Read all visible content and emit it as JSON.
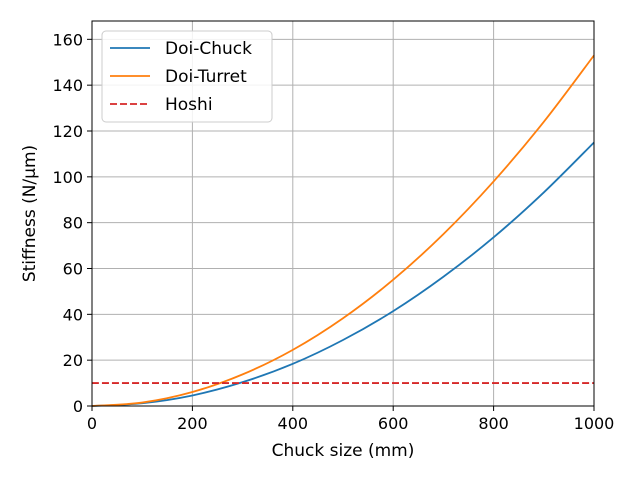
{
  "chart_data": {
    "type": "line",
    "title": "",
    "xlabel": "Chuck size (mm)",
    "ylabel": "Stiffness (N/µm)",
    "xlim": [
      0,
      1000
    ],
    "ylim": [
      0,
      168
    ],
    "xticks": [
      0,
      200,
      400,
      600,
      800,
      1000
    ],
    "xtick_labels": [
      "0",
      "200",
      "400",
      "600",
      "800",
      "1000"
    ],
    "yticks": [
      0,
      20,
      40,
      60,
      80,
      100,
      120,
      140,
      160
    ],
    "ytick_labels": [
      "0",
      "20",
      "40",
      "60",
      "80",
      "100",
      "120",
      "140",
      "160"
    ],
    "grid": true,
    "legend_position": "top-left",
    "x": [
      0,
      100,
      200,
      300,
      400,
      500,
      600,
      700,
      800,
      900,
      1000
    ],
    "series": [
      {
        "name": "Doi-Chuck",
        "color": "#1f77b4",
        "style": "solid",
        "values": [
          0,
          1.2,
          4.6,
          10.4,
          18.4,
          28.8,
          41.4,
          56.4,
          73.6,
          93.2,
          115
        ]
      },
      {
        "name": "Doi-Turret",
        "color": "#ff7f0e",
        "style": "solid",
        "values": [
          0,
          1.5,
          6.1,
          13.8,
          24.5,
          38.3,
          55.1,
          75.0,
          98.0,
          124.0,
          153
        ]
      },
      {
        "name": "Hoshi",
        "color": "#d62728",
        "style": "dashed",
        "values": [
          10,
          10,
          10,
          10,
          10,
          10,
          10,
          10,
          10,
          10,
          10
        ]
      }
    ]
  }
}
